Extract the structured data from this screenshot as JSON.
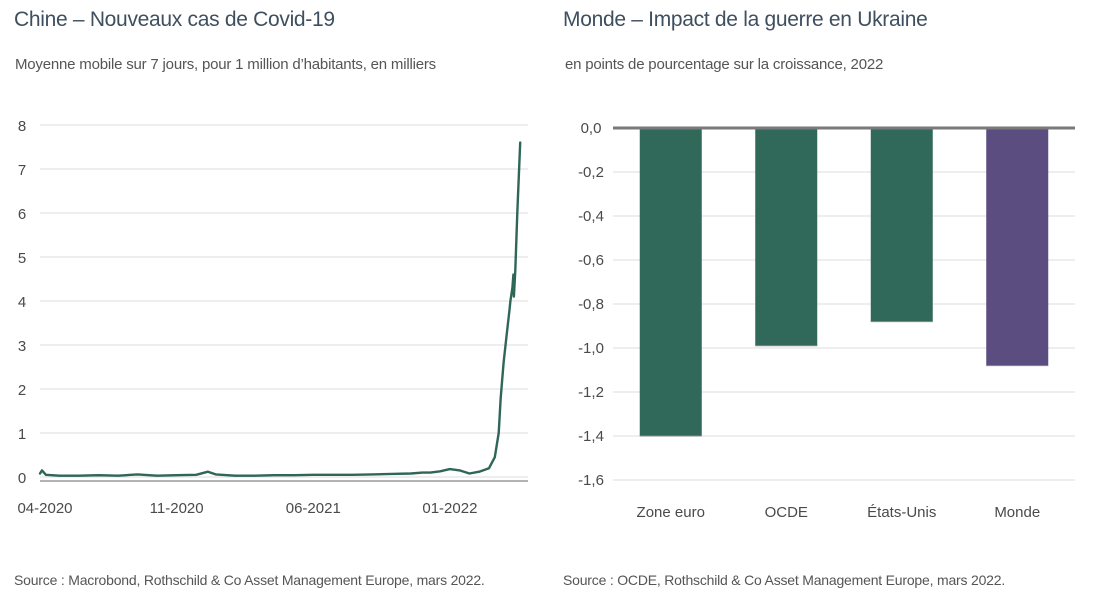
{
  "charts": {
    "left": {
      "title": "Chine – Nouveaux cas de Covid-19",
      "subtitle": "Moyenne mobile sur 7 jours, pour 1 million d’habitants, en milliers",
      "source": "Source : Macrobond, Rothschild & Co Asset Management Europe, mars 2022."
    },
    "right": {
      "title": "Monde – Impact de la guerre en Ukraine",
      "subtitle": "en points de pourcentage sur la croissance, 2022",
      "source": "Source : OCDE, Rothschild & Co Asset Management Europe, mars 2022."
    }
  },
  "chart_data": [
    {
      "type": "line",
      "title": "Chine – Nouveaux cas de Covid-19",
      "subtitle": "Moyenne mobile sur 7 jours, pour 1 million d’habitants, en milliers",
      "xlabel": "",
      "ylabel": "",
      "ylim": [
        0,
        8
      ],
      "yticks": [
        0,
        1,
        2,
        3,
        4,
        5,
        6,
        7,
        8
      ],
      "xlim": [
        0,
        25
      ],
      "xtick_positions": [
        0,
        7,
        14,
        21
      ],
      "xtick_labels": [
        "04-2020",
        "11-2020",
        "06-2021",
        "01-2022"
      ],
      "grid": true,
      "color": "#2f6658",
      "series": [
        {
          "name": "Chine",
          "x": [
            0,
            0.1,
            0.3,
            1,
            2,
            3,
            4,
            5,
            6,
            7,
            8,
            8.6,
            9,
            10,
            11,
            12,
            13,
            14,
            15,
            16,
            17,
            18,
            19,
            19.6,
            20,
            20.5,
            21,
            21.5,
            22,
            22.5,
            23,
            23.3,
            23.5,
            23.6,
            23.75,
            23.9,
            24.0,
            24.05,
            24.1,
            24.2,
            24.25,
            24.28,
            24.35,
            24.45,
            24.6
          ],
          "y": [
            0.08,
            0.15,
            0.05,
            0.03,
            0.03,
            0.04,
            0.03,
            0.06,
            0.03,
            0.04,
            0.05,
            0.12,
            0.06,
            0.03,
            0.03,
            0.04,
            0.04,
            0.05,
            0.05,
            0.05,
            0.06,
            0.07,
            0.08,
            0.1,
            0.1,
            0.13,
            0.18,
            0.15,
            0.08,
            0.12,
            0.2,
            0.45,
            1.0,
            1.8,
            2.6,
            3.2,
            3.6,
            3.8,
            4.0,
            4.3,
            4.6,
            4.1,
            4.7,
            6.0,
            7.6
          ]
        }
      ]
    },
    {
      "type": "bar",
      "title": "Monde – Impact de la guerre en Ukraine",
      "subtitle": "en points de pourcentage sur la croissance, 2022",
      "categories": [
        "Zone euro",
        "OCDE",
        "États-Unis",
        "Monde"
      ],
      "values": [
        -1.4,
        -0.99,
        -0.88,
        -1.08
      ],
      "colors": [
        "#30685a",
        "#30685a",
        "#30685a",
        "#5b4d80"
      ],
      "ylim": [
        -1.6,
        0
      ],
      "yticks": [
        0,
        -0.2,
        -0.4,
        -0.6,
        -0.8,
        -1.0,
        -1.2,
        -1.4,
        -1.6
      ],
      "ytick_labels": [
        "0,0",
        "-0,2",
        "-0,4",
        "-0,6",
        "-0,8",
        "-1,0",
        "-1,2",
        "-1,4",
        "-1,6"
      ],
      "xlabel": "",
      "ylabel": "",
      "grid": true
    }
  ]
}
